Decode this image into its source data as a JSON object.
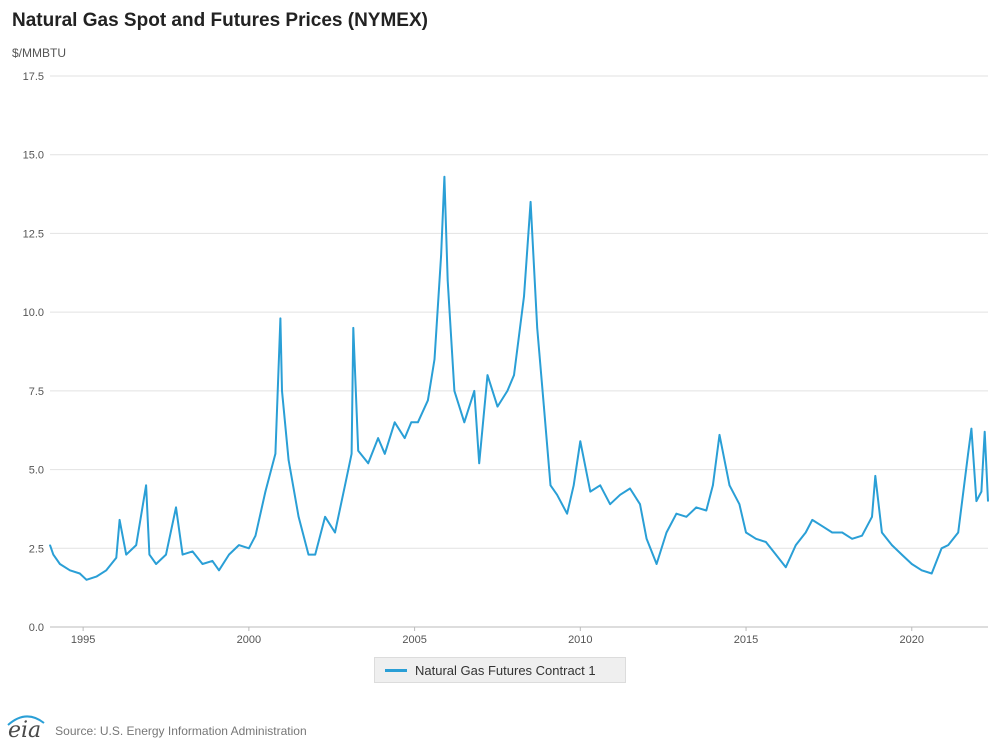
{
  "page": {
    "title": "Natural Gas Spot and Futures Prices (NYMEX)",
    "unit_label": "$/MMBTU",
    "source": "Source: U.S. Energy Information Administration",
    "logo_text": "eia"
  },
  "chart_data": {
    "type": "line",
    "title": "Natural Gas Spot and Futures Prices (NYMEX)",
    "ylabel": "$/MMBTU",
    "xlabel": "",
    "xlim": [
      1994.0,
      2022.3
    ],
    "ylim": [
      0,
      17.5
    ],
    "x_ticks": [
      1995,
      2000,
      2005,
      2010,
      2015,
      2020
    ],
    "y_ticks": [
      0,
      2.5,
      5,
      7.5,
      10,
      12.5,
      15,
      17.5
    ],
    "y_tick_labels": [
      "0.0",
      "2.5",
      "5.0",
      "7.5",
      "10.0",
      "12.5",
      "15.0",
      "17.5"
    ],
    "grid": true,
    "legend": "bottom-center",
    "series": [
      {
        "name": "Natural Gas Futures Contract 1",
        "color": "#2a9fd6",
        "x": [
          1994.0,
          1994.1,
          1994.3,
          1994.6,
          1994.9,
          1995.1,
          1995.4,
          1995.7,
          1996.0,
          1996.1,
          1996.3,
          1996.6,
          1996.9,
          1997.0,
          1997.2,
          1997.5,
          1997.8,
          1998.0,
          1998.3,
          1998.6,
          1998.9,
          1999.1,
          1999.4,
          1999.7,
          2000.0,
          2000.2,
          2000.5,
          2000.8,
          2000.95,
          2001.0,
          2001.2,
          2001.5,
          2001.8,
          2002.0,
          2002.3,
          2002.6,
          2002.9,
          2003.1,
          2003.15,
          2003.3,
          2003.6,
          2003.9,
          2004.1,
          2004.4,
          2004.7,
          2004.9,
          2005.1,
          2005.4,
          2005.6,
          2005.8,
          2005.9,
          2006.0,
          2006.2,
          2006.5,
          2006.8,
          2006.95,
          2007.2,
          2007.5,
          2007.8,
          2008.0,
          2008.3,
          2008.5,
          2008.7,
          2008.9,
          2009.1,
          2009.3,
          2009.6,
          2009.8,
          2010.0,
          2010.3,
          2010.6,
          2010.9,
          2011.2,
          2011.5,
          2011.8,
          2012.0,
          2012.3,
          2012.6,
          2012.9,
          2013.2,
          2013.5,
          2013.8,
          2014.0,
          2014.2,
          2014.5,
          2014.8,
          2015.0,
          2015.3,
          2015.6,
          2015.9,
          2016.2,
          2016.5,
          2016.8,
          2017.0,
          2017.3,
          2017.6,
          2017.9,
          2018.2,
          2018.5,
          2018.8,
          2018.9,
          2019.1,
          2019.4,
          2019.7,
          2020.0,
          2020.3,
          2020.6,
          2020.9,
          2021.1,
          2021.4,
          2021.7,
          2021.8,
          2021.95,
          2022.1,
          2022.2,
          2022.3
        ],
        "values": [
          2.6,
          2.3,
          2.0,
          1.8,
          1.7,
          1.5,
          1.6,
          1.8,
          2.2,
          3.4,
          2.3,
          2.6,
          4.5,
          2.3,
          2.0,
          2.3,
          3.8,
          2.3,
          2.4,
          2.0,
          2.1,
          1.8,
          2.3,
          2.6,
          2.5,
          2.9,
          4.3,
          5.5,
          9.8,
          7.5,
          5.3,
          3.5,
          2.3,
          2.3,
          3.5,
          3.0,
          4.5,
          5.5,
          9.5,
          5.6,
          5.2,
          6.0,
          5.5,
          6.5,
          6.0,
          6.5,
          6.5,
          7.2,
          8.5,
          11.8,
          14.3,
          11.0,
          7.5,
          6.5,
          7.5,
          5.2,
          8.0,
          7.0,
          7.5,
          8.0,
          10.5,
          13.5,
          9.5,
          7.0,
          4.5,
          4.2,
          3.6,
          4.5,
          5.9,
          4.3,
          4.5,
          3.9,
          4.2,
          4.4,
          3.9,
          2.8,
          2.0,
          3.0,
          3.6,
          3.5,
          3.8,
          3.7,
          4.5,
          6.1,
          4.5,
          3.9,
          3.0,
          2.8,
          2.7,
          2.3,
          1.9,
          2.6,
          3.0,
          3.4,
          3.2,
          3.0,
          3.0,
          2.8,
          2.9,
          3.5,
          4.8,
          3.0,
          2.6,
          2.3,
          2.0,
          1.8,
          1.7,
          2.5,
          2.6,
          3.0,
          5.5,
          6.3,
          4.0,
          4.3,
          6.2,
          4.0
        ]
      }
    ]
  }
}
